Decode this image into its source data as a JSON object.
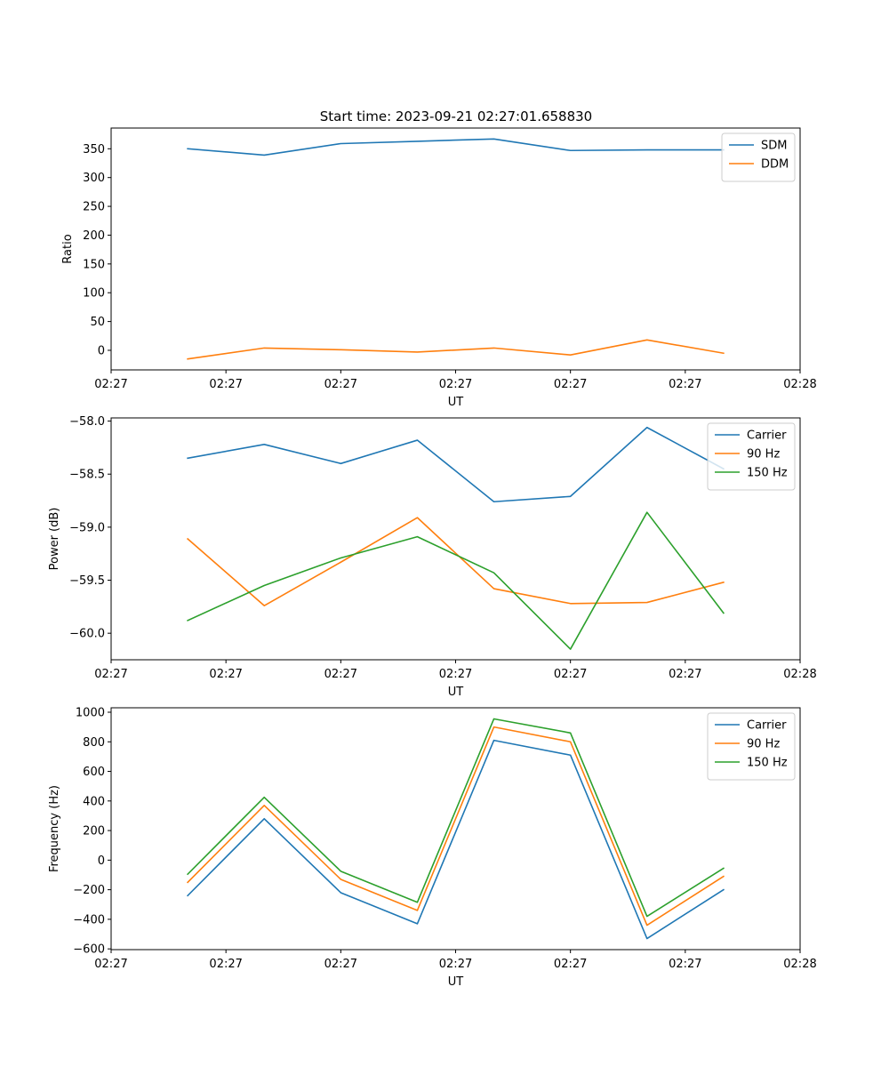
{
  "figure_title": "Start time: 2023-09-21 02:27:01.658830",
  "colors": {
    "blue": "#1f77b4",
    "orange": "#ff7f0e",
    "green": "#2ca02c"
  },
  "chart_data": [
    {
      "type": "line",
      "title": "Start time: 2023-09-21 02:27:01.658830",
      "xlabel": "UT",
      "ylabel": "Ratio",
      "x": [
        1,
        2,
        3,
        4,
        5,
        6,
        7,
        8
      ],
      "xlim": [
        0,
        9
      ],
      "xticks": [
        0,
        1.5,
        3,
        4.5,
        6,
        7.5,
        9
      ],
      "xticklabels": [
        "02:27",
        "02:27",
        "02:27",
        "02:27",
        "02:27",
        "02:27",
        "02:28"
      ],
      "ylim": [
        -34,
        386
      ],
      "yticks": [
        0,
        50,
        100,
        150,
        200,
        250,
        300,
        350
      ],
      "yticklabels": [
        "0",
        "50",
        "100",
        "150",
        "200",
        "250",
        "300",
        "350"
      ],
      "legend": "top-right",
      "series": [
        {
          "name": "SDM",
          "color": "#1f77b4",
          "values": [
            350,
            339,
            359,
            363,
            367,
            347,
            348,
            348
          ]
        },
        {
          "name": "DDM",
          "color": "#ff7f0e",
          "values": [
            -15,
            4,
            1,
            -3,
            4,
            -8,
            18,
            -5
          ]
        }
      ]
    },
    {
      "type": "line",
      "title": "",
      "xlabel": "UT",
      "ylabel": "Power (dB)",
      "x": [
        1,
        2,
        3,
        4,
        5,
        6,
        7,
        8
      ],
      "xlim": [
        0,
        9
      ],
      "xticks": [
        0,
        1.5,
        3,
        4.5,
        6,
        7.5,
        9
      ],
      "xticklabels": [
        "02:27",
        "02:27",
        "02:27",
        "02:27",
        "02:27",
        "02:27",
        "02:28"
      ],
      "ylim": [
        -60.25,
        -57.97
      ],
      "yticks": [
        -60.0,
        -59.5,
        -59.0,
        -58.5,
        -58.0
      ],
      "yticklabels": [
        "−60.0",
        "−59.5",
        "−59.0",
        "−58.5",
        "−58.0"
      ],
      "legend": "top-right",
      "series": [
        {
          "name": "Carrier",
          "color": "#1f77b4",
          "values": [
            -58.35,
            -58.22,
            -58.4,
            -58.18,
            -58.76,
            -58.71,
            -58.06,
            -58.45
          ]
        },
        {
          "name": "90 Hz",
          "color": "#ff7f0e",
          "values": [
            -59.11,
            -59.74,
            -59.33,
            -58.91,
            -59.58,
            -59.72,
            -59.71,
            -59.52
          ]
        },
        {
          "name": "150 Hz",
          "color": "#2ca02c",
          "values": [
            -59.88,
            -59.55,
            -59.29,
            -59.09,
            -59.43,
            -60.15,
            -58.86,
            -59.81
          ]
        }
      ]
    },
    {
      "type": "line",
      "title": "",
      "xlabel": "UT",
      "ylabel": "Frequency (Hz)",
      "x": [
        1,
        2,
        3,
        4,
        5,
        6,
        7,
        8
      ],
      "xlim": [
        0,
        9
      ],
      "xticks": [
        0,
        1.5,
        3,
        4.5,
        6,
        7.5,
        9
      ],
      "xticklabels": [
        "02:27",
        "02:27",
        "02:27",
        "02:27",
        "02:27",
        "02:27",
        "02:28"
      ],
      "ylim": [
        -605,
        1030
      ],
      "yticks": [
        -600,
        -400,
        -200,
        0,
        200,
        400,
        600,
        800,
        1000
      ],
      "yticklabels": [
        "−600",
        "−400",
        "−200",
        "0",
        "200",
        "400",
        "600",
        "800",
        "1000"
      ],
      "legend": "top-right",
      "series": [
        {
          "name": "Carrier",
          "color": "#1f77b4",
          "values": [
            -240,
            280,
            -220,
            -430,
            810,
            710,
            -530,
            -200
          ]
        },
        {
          "name": "90 Hz",
          "color": "#ff7f0e",
          "values": [
            -150,
            370,
            -130,
            -340,
            900,
            800,
            -440,
            -110
          ]
        },
        {
          "name": "150 Hz",
          "color": "#2ca02c",
          "values": [
            -95,
            425,
            -75,
            -285,
            955,
            860,
            -380,
            -55
          ]
        }
      ]
    }
  ]
}
